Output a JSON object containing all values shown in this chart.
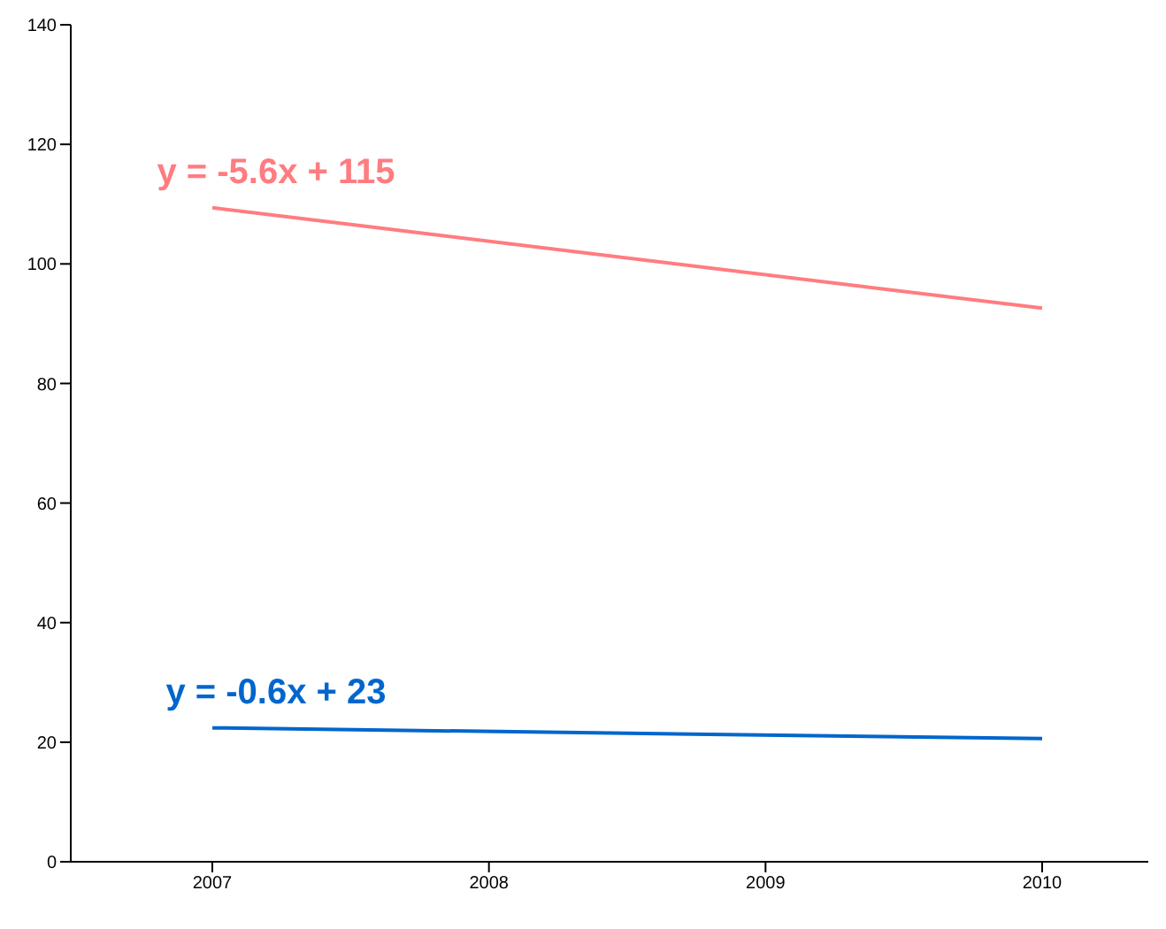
{
  "chart_data": {
    "type": "line",
    "categories": [
      "2007",
      "2008",
      "2009",
      "2010"
    ],
    "series": [
      {
        "color": "#ff7c80",
        "values": [
          109.4,
          null,
          null,
          92.6
        ]
      },
      {
        "color": "#0066cc",
        "values": [
          22.4,
          null,
          null,
          20.6
        ]
      }
    ],
    "ylim": [
      0,
      140
    ],
    "yticks": [
      0,
      20,
      40,
      60,
      80,
      100,
      120,
      140
    ],
    "grid": false,
    "legend": false,
    "marker": "none",
    "line_style": "solid",
    "annotations": [
      "y = -5.6x + 115",
      "y = -0.6x + 23"
    ]
  }
}
